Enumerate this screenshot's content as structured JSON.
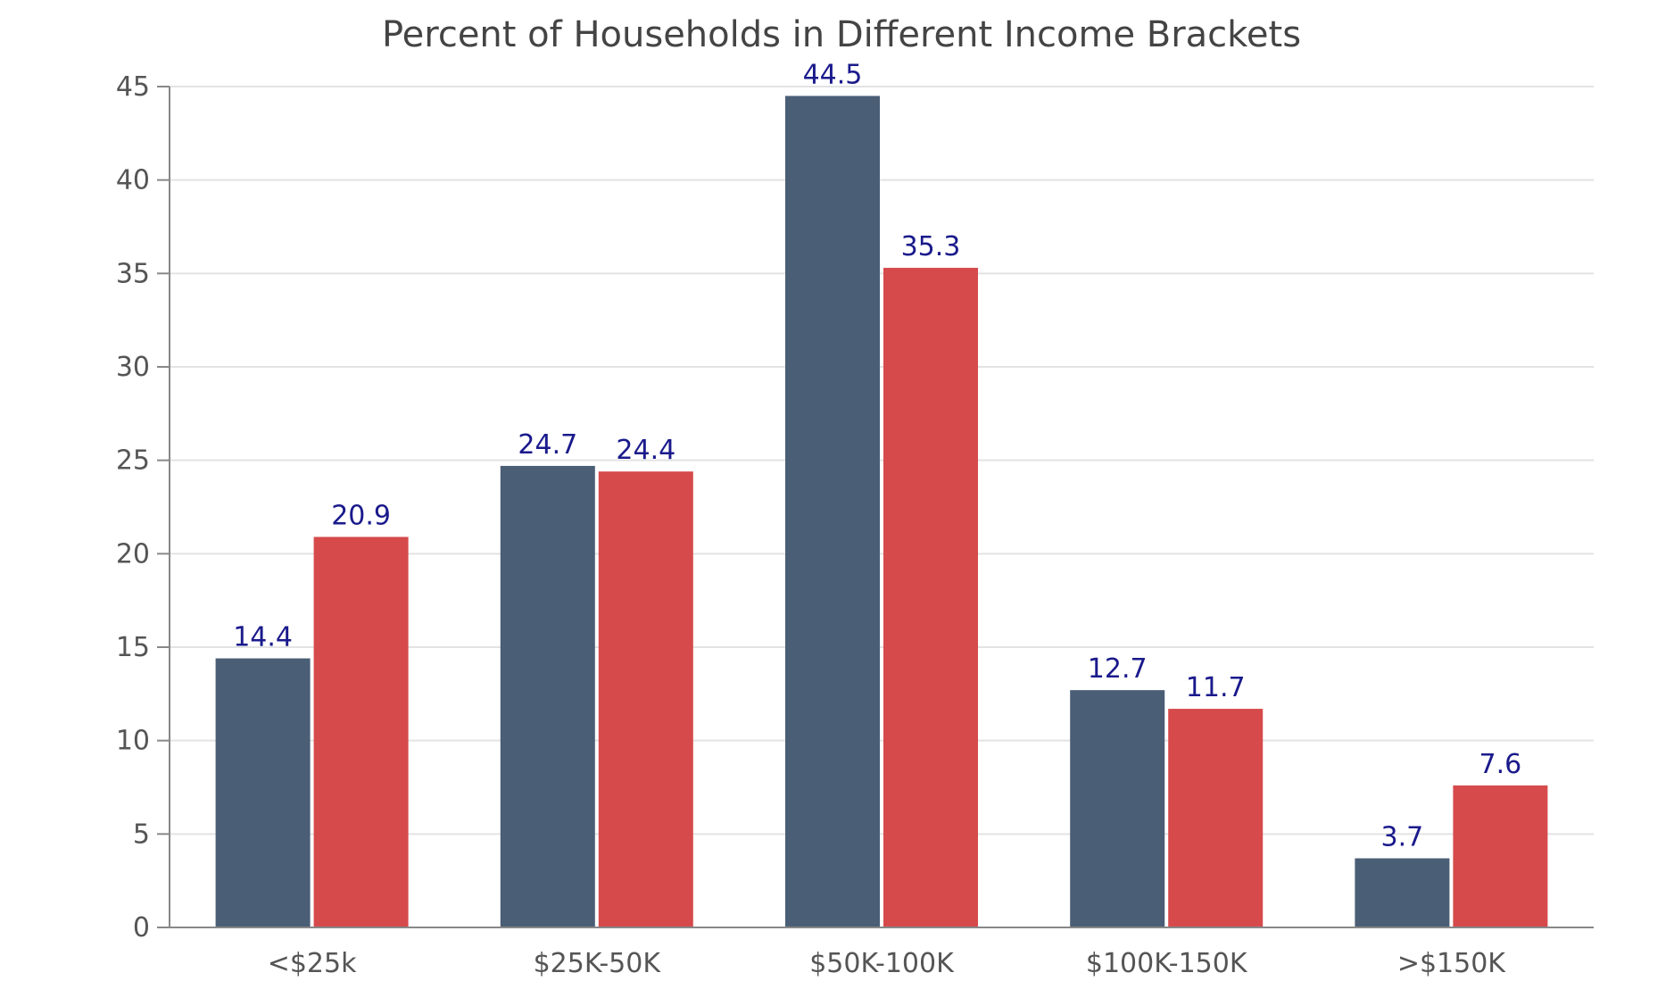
{
  "chart_data": {
    "type": "bar",
    "title": "Percent of Households in Different Income Brackets",
    "xlabel": "",
    "ylabel": "",
    "categories": [
      "<$25k",
      "$25K-50K",
      "$50K-100K",
      "$100K-150K",
      ">$150K"
    ],
    "series": [
      {
        "values": [
          14.4,
          24.7,
          44.5,
          12.7,
          3.7
        ],
        "color": "#4a5e75"
      },
      {
        "values": [
          20.9,
          24.4,
          35.3,
          11.7,
          7.6
        ],
        "color": "#d64a4b"
      }
    ],
    "ylim": [
      0,
      45
    ],
    "yticks": [
      0,
      5,
      10,
      15,
      20,
      25,
      30,
      35,
      40,
      45
    ],
    "grid": true,
    "data_labels": true
  }
}
